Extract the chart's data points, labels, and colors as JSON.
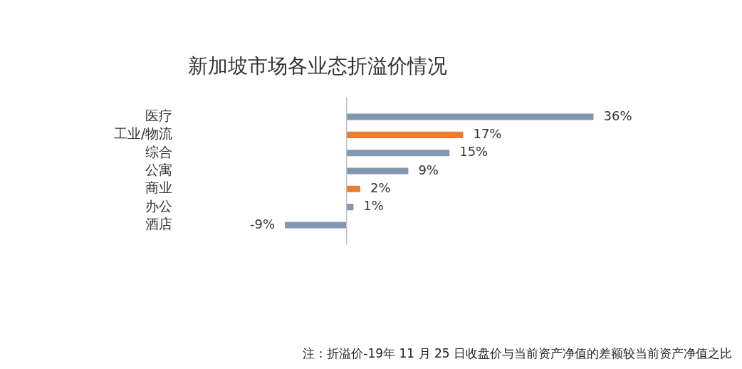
{
  "chart_data": {
    "type": "bar",
    "orientation": "horizontal",
    "title": "新加坡市场各业态折溢价情况",
    "categories": [
      "医疗",
      "工业/物流",
      "综合",
      "公寓",
      "商业",
      "办公",
      "酒店"
    ],
    "values": [
      36,
      17,
      15,
      9,
      2,
      1,
      -9
    ],
    "colors": [
      "#8497b0",
      "#ed7d31",
      "#8497b0",
      "#8497b0",
      "#ed7d31",
      "#8497b0",
      "#8497b0"
    ],
    "value_labels": [
      "36%",
      "17%",
      "15%",
      "9%",
      "2%",
      "1%",
      "-9%"
    ],
    "annotations": [
      "注：折溢价-19年 11 月 25 日收盘价与当前资产净值的差额较当前资产净值之比"
    ]
  }
}
